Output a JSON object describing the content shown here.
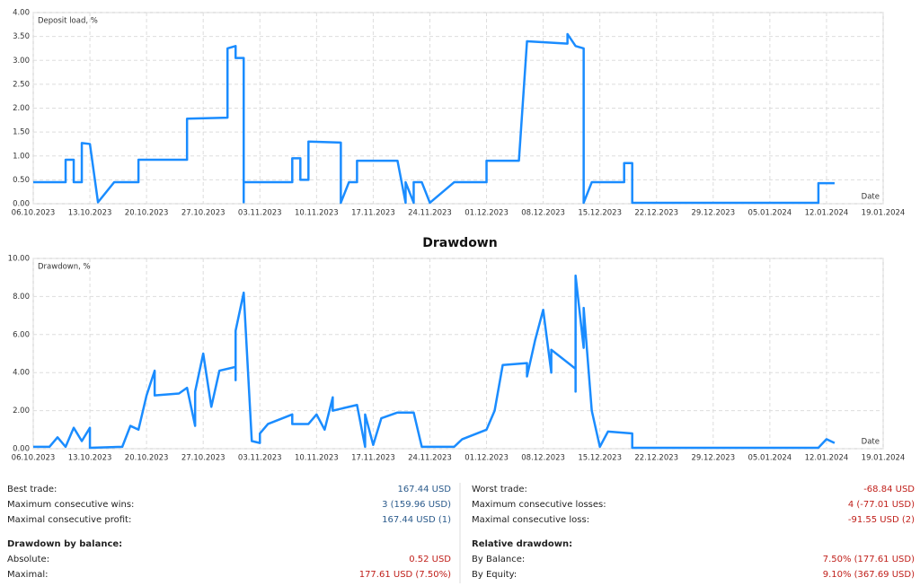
{
  "chart_data": [
    {
      "type": "line",
      "x": [
        "06.10.2023",
        "10.10.2023",
        "10.10.2023",
        "11.10.2023",
        "11.10.2023",
        "12.10.2023",
        "12.10.2023",
        "13.10.2023",
        "14.10.2023",
        "16.10.2023",
        "19.10.2023",
        "19.10.2023",
        "25.10.2023",
        "25.10.2023",
        "30.10.2023",
        "30.10.2023",
        "31.10.2023",
        "31.10.2023",
        "01.11.2023",
        "01.11.2023",
        "01.11.2023",
        "07.11.2023",
        "07.11.2023",
        "08.11.2023",
        "08.11.2023",
        "09.11.2023",
        "09.11.2023",
        "13.11.2023",
        "13.11.2023",
        "14.11.2023",
        "15.11.2023",
        "15.11.2023",
        "20.11.2023",
        "21.11.2023",
        "21.11.2023",
        "22.11.2023",
        "22.11.2023",
        "23.11.2023",
        "24.11.2023",
        "27.11.2023",
        "01.12.2023",
        "01.12.2023",
        "05.12.2023",
        "06.12.2023",
        "11.12.2023",
        "11.12.2023",
        "12.12.2023",
        "13.12.2023",
        "13.12.2023",
        "14.12.2023",
        "18.12.2023",
        "18.12.2023",
        "19.12.2023",
        "19.12.2023",
        "11.01.2024",
        "11.01.2024",
        "13.01.2024"
      ],
      "series": [
        {
          "name": "Deposit load, %",
          "color": "#1a8cff",
          "values": [
            0.45,
            0.45,
            0.92,
            0.92,
            0.45,
            0.45,
            1.27,
            1.25,
            0.03,
            0.45,
            0.45,
            0.92,
            0.92,
            1.78,
            1.8,
            3.25,
            3.3,
            3.05,
            3.05,
            0.03,
            0.45,
            0.45,
            0.95,
            0.95,
            0.5,
            0.5,
            1.3,
            1.28,
            0.02,
            0.45,
            0.45,
            0.9,
            0.9,
            0.02,
            0.45,
            0.02,
            0.45,
            0.45,
            0.02,
            0.45,
            0.45,
            0.9,
            0.9,
            3.4,
            3.35,
            3.55,
            3.3,
            3.25,
            0.02,
            0.45,
            0.45,
            0.85,
            0.85,
            0.02,
            0.02,
            0.43,
            0.43
          ]
        }
      ],
      "xlabel": "Date",
      "xlim": [
        "06.10.2023",
        "19.01.2024"
      ],
      "xticks": [
        "06.10.2023",
        "13.10.2023",
        "20.10.2023",
        "27.10.2023",
        "03.11.2023",
        "10.11.2023",
        "17.11.2023",
        "24.11.2023",
        "01.12.2023",
        "08.12.2023",
        "15.12.2023",
        "22.12.2023",
        "29.12.2023",
        "05.01.2024",
        "12.01.2024",
        "19.01.2024"
      ],
      "ylim": [
        0,
        4
      ],
      "yticks": [
        {
          "value": 0,
          "label": "0.00"
        },
        {
          "value": 0.5,
          "label": "0.50"
        },
        {
          "value": 1,
          "label": "1.00"
        },
        {
          "value": 1.5,
          "label": "1.50"
        },
        {
          "value": 2,
          "label": "2.00"
        },
        {
          "value": 2.5,
          "label": "2.50"
        },
        {
          "value": 3,
          "label": "3.00"
        },
        {
          "value": 3.5,
          "label": "3.50"
        },
        {
          "value": 4,
          "label": "4.00"
        }
      ],
      "grid": true
    },
    {
      "type": "line",
      "title": "Drawdown",
      "x": [
        "06.10.2023",
        "08.10.2023",
        "09.10.2023",
        "10.10.2023",
        "11.10.2023",
        "12.10.2023",
        "13.10.2023",
        "13.10.2023",
        "17.10.2023",
        "18.10.2023",
        "19.10.2023",
        "20.10.2023",
        "21.10.2023",
        "21.10.2023",
        "24.10.2023",
        "25.10.2023",
        "26.10.2023",
        "26.10.2023",
        "27.10.2023",
        "28.10.2023",
        "29.10.2023",
        "31.10.2023",
        "31.10.2023",
        "31.10.2023",
        "01.11.2023",
        "02.11.2023",
        "03.11.2023",
        "03.11.2023",
        "04.11.2023",
        "07.11.2023",
        "07.11.2023",
        "09.11.2023",
        "10.11.2023",
        "11.11.2023",
        "12.11.2023",
        "12.11.2023",
        "15.11.2023",
        "16.11.2023",
        "16.11.2023",
        "17.11.2023",
        "18.11.2023",
        "20.11.2023",
        "22.11.2023",
        "23.11.2023",
        "25.11.2023",
        "27.11.2023",
        "28.11.2023",
        "01.12.2023",
        "02.12.2023",
        "03.12.2023",
        "06.12.2023",
        "06.12.2023",
        "07.12.2023",
        "08.12.2023",
        "09.12.2023",
        "09.12.2023",
        "12.12.2023",
        "12.12.2023",
        "12.12.2023",
        "13.12.2023",
        "13.12.2023",
        "14.12.2023",
        "15.12.2023",
        "16.12.2023",
        "19.12.2023",
        "19.12.2023",
        "11.01.2024",
        "12.01.2024",
        "13.01.2024"
      ],
      "series": [
        {
          "name": "Drawdown, %",
          "color": "#1a8cff",
          "values": [
            0.1,
            0.1,
            0.6,
            0.1,
            1.1,
            0.4,
            1.1,
            0.05,
            0.1,
            1.2,
            1.0,
            2.8,
            4.1,
            2.8,
            2.9,
            3.2,
            1.2,
            3.0,
            5.0,
            2.2,
            4.1,
            4.3,
            3.6,
            6.2,
            8.2,
            0.4,
            0.3,
            0.8,
            1.3,
            1.8,
            1.3,
            1.3,
            1.8,
            1.0,
            2.7,
            2.0,
            2.3,
            0.1,
            1.8,
            0.2,
            1.6,
            1.9,
            1.9,
            0.1,
            0.1,
            0.1,
            0.5,
            1.0,
            2.0,
            4.4,
            4.5,
            3.8,
            5.7,
            7.3,
            4.0,
            5.2,
            4.2,
            3.0,
            9.1,
            5.3,
            7.4,
            2.0,
            0.1,
            0.9,
            0.8,
            0.05,
            0.05,
            0.5,
            0.3
          ]
        }
      ],
      "xlabel": "Date",
      "xlim": [
        "06.10.2023",
        "19.01.2024"
      ],
      "xticks": [
        "06.10.2023",
        "13.10.2023",
        "20.10.2023",
        "27.10.2023",
        "03.11.2023",
        "10.11.2023",
        "17.11.2023",
        "24.11.2023",
        "01.12.2023",
        "08.12.2023",
        "15.12.2023",
        "22.12.2023",
        "29.12.2023",
        "05.01.2024",
        "12.01.2024",
        "19.01.2024"
      ],
      "ylim": [
        0,
        10
      ],
      "yticks": [
        {
          "value": 0,
          "label": "0.00"
        },
        {
          "value": 2,
          "label": "2.00"
        },
        {
          "value": 4,
          "label": "4.00"
        },
        {
          "value": 6,
          "label": "6.00"
        },
        {
          "value": 8,
          "label": "8.00"
        },
        {
          "value": 10,
          "label": "10.00"
        }
      ],
      "grid": true
    }
  ],
  "stats": {
    "left": [
      {
        "label": "Best trade:",
        "value": "167.44 USD",
        "color": "#2b5b8c"
      },
      {
        "label": "Maximum consecutive wins:",
        "value": "3 (159.96 USD)",
        "color": "#2b5b8c"
      },
      {
        "label": "Maximal consecutive profit:",
        "value": "167.44 USD (1)",
        "color": "#2b5b8c"
      },
      {
        "heading": "Drawdown by balance:"
      },
      {
        "label": "Absolute:",
        "value": "0.52 USD",
        "color": "#c0201b"
      },
      {
        "label": "Maximal:",
        "value": "177.61 USD (7.50%)",
        "color": "#c0201b"
      }
    ],
    "right": [
      {
        "label": "Worst trade:",
        "value": "-68.84 USD",
        "color": "#c0201b"
      },
      {
        "label": "Maximum consecutive losses:",
        "value": "4 (-77.01 USD)",
        "color": "#c0201b"
      },
      {
        "label": "Maximal consecutive loss:",
        "value": "-91.55 USD (2)",
        "color": "#c0201b"
      },
      {
        "heading": "Relative drawdown:"
      },
      {
        "label": "By Balance:",
        "value": "7.50% (177.61 USD)",
        "color": "#c0201b"
      },
      {
        "label": "By Equity:",
        "value": "9.10% (367.69 USD)",
        "color": "#c0201b"
      }
    ]
  }
}
